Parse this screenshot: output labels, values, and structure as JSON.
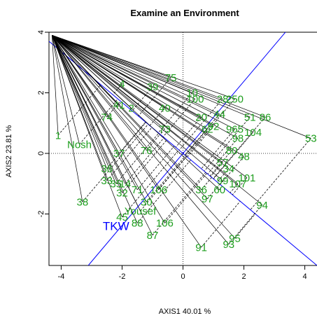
{
  "chart_data": {
    "type": "scatter",
    "title": "Examine an Environment",
    "xlabel": "AXIS1 40.01 %",
    "ylabel": "AXIS2 23.81 %",
    "xlim": [
      -4.4,
      4.4
    ],
    "ylim": [
      -3.7,
      4.0
    ],
    "xticks": [
      -4,
      -2,
      0,
      2,
      4
    ],
    "yticks": [
      -2,
      0,
      2,
      4
    ],
    "xtick_labels": [
      "-4",
      "-2",
      "0",
      "2",
      "4"
    ],
    "ytick_labels": [
      "-2",
      "0",
      "2",
      "4"
    ],
    "grid": false,
    "reference_lines": [
      0,
      0
    ],
    "environment": "Nosh",
    "environment_axis_end": [
      -4.4,
      3.7
    ],
    "colors": {
      "points": "#1e9e1e",
      "vectors": "#0000ff",
      "lines": "#000000"
    },
    "points": [
      {
        "label": "1",
        "x": -4.1,
        "y": 0.6
      },
      {
        "label": "Nosh",
        "x": -3.4,
        "y": 0.3
      },
      {
        "label": "38",
        "x": -3.3,
        "y": -1.6
      },
      {
        "label": "4",
        "x": -2.0,
        "y": 2.3
      },
      {
        "label": "39",
        "x": -1.0,
        "y": 2.2
      },
      {
        "label": "75",
        "x": -0.4,
        "y": 2.5
      },
      {
        "label": "10",
        "x": 0.3,
        "y": 2.0
      },
      {
        "label": "100",
        "x": 0.4,
        "y": 1.8
      },
      {
        "label": "28",
        "x": 1.3,
        "y": 1.8
      },
      {
        "label": "250",
        "x": 1.7,
        "y": 1.8
      },
      {
        "label": "44",
        "x": 1.2,
        "y": 1.3
      },
      {
        "label": "51",
        "x": 2.2,
        "y": 1.2
      },
      {
        "label": "86",
        "x": 2.7,
        "y": 1.2
      },
      {
        "label": "98",
        "x": 1.8,
        "y": 0.5
      },
      {
        "label": "965",
        "x": 1.7,
        "y": 0.8
      },
      {
        "label": "104",
        "x": 2.3,
        "y": 0.7
      },
      {
        "label": "53",
        "x": 4.2,
        "y": 0.5
      },
      {
        "label": "48",
        "x": 2.0,
        "y": -0.1
      },
      {
        "label": "101",
        "x": 2.1,
        "y": -0.8
      },
      {
        "label": "107",
        "x": 1.8,
        "y": -1.0
      },
      {
        "label": "94",
        "x": 2.6,
        "y": -1.7
      },
      {
        "label": "95",
        "x": 1.7,
        "y": -2.8
      },
      {
        "label": "93",
        "x": 1.5,
        "y": -3.0
      },
      {
        "label": "91",
        "x": 0.6,
        "y": -3.1
      },
      {
        "label": "87",
        "x": -1.0,
        "y": -2.7
      },
      {
        "label": "88",
        "x": -1.5,
        "y": -2.3
      },
      {
        "label": "106",
        "x": -0.6,
        "y": -2.3
      },
      {
        "label": "45",
        "x": -2.0,
        "y": -2.1
      },
      {
        "label": "Yousef",
        "x": -1.4,
        "y": -1.9
      },
      {
        "label": "30",
        "x": -1.2,
        "y": -1.6
      },
      {
        "label": "97",
        "x": 0.8,
        "y": -1.5
      },
      {
        "label": "60",
        "x": 1.2,
        "y": -1.2
      },
      {
        "label": "36",
        "x": 0.6,
        "y": -1.2
      },
      {
        "label": "71",
        "x": -1.5,
        "y": -1.2
      },
      {
        "label": "106",
        "x": -0.8,
        "y": -1.2
      },
      {
        "label": "32",
        "x": -2.0,
        "y": -1.3
      },
      {
        "label": "14",
        "x": -1.9,
        "y": -1.0
      },
      {
        "label": "33",
        "x": -2.5,
        "y": -0.9
      },
      {
        "label": "35",
        "x": -2.2,
        "y": -1.0
      },
      {
        "label": "36",
        "x": -2.5,
        "y": -0.5
      },
      {
        "label": "37",
        "x": -2.1,
        "y": 0.0
      },
      {
        "label": "40",
        "x": -0.6,
        "y": 1.5
      },
      {
        "label": "41",
        "x": -2.1,
        "y": 1.6
      },
      {
        "label": "2",
        "x": -1.7,
        "y": 1.5
      },
      {
        "label": "74",
        "x": -2.5,
        "y": 1.2
      },
      {
        "label": "73",
        "x": -0.6,
        "y": 0.8
      },
      {
        "label": "62",
        "x": 0.8,
        "y": 0.8
      },
      {
        "label": "20",
        "x": 0.6,
        "y": 1.2
      },
      {
        "label": "92",
        "x": 1.0,
        "y": 0.9
      },
      {
        "label": "57",
        "x": 1.3,
        "y": -0.3
      },
      {
        "label": "34",
        "x": 1.5,
        "y": -0.5
      },
      {
        "label": "80",
        "x": 1.6,
        "y": 0.1
      },
      {
        "label": "99",
        "x": 1.3,
        "y": -0.9
      },
      {
        "label": "76",
        "x": -1.2,
        "y": 0.1
      }
    ],
    "vectors": [
      {
        "label": "TKW",
        "x": -2.2,
        "y": -2.4
      }
    ]
  }
}
